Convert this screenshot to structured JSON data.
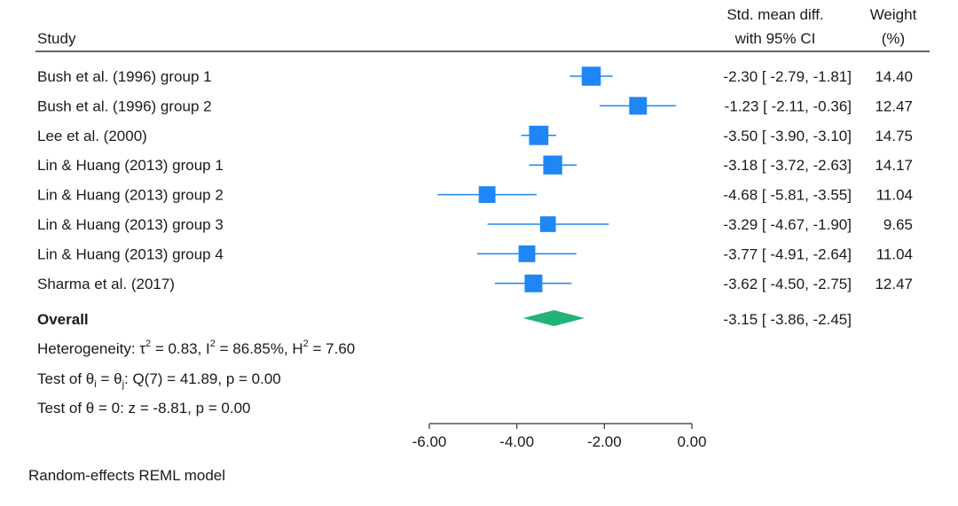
{
  "chart_data": {
    "type": "forest",
    "header": {
      "study": "Study",
      "effect_line1": "Std. mean diff.",
      "effect_line2": "with 95% CI",
      "weight_line1": "Weight",
      "weight_line2": "(%)"
    },
    "studies": [
      {
        "label": "Bush et al. (1996) group 1",
        "est": -2.3,
        "lo": -2.79,
        "hi": -1.81,
        "ci_text": "-2.30 [ -2.79,  -1.81]",
        "weight": 14.4,
        "weight_text": "14.40"
      },
      {
        "label": "Bush et al. (1996) group 2",
        "est": -1.23,
        "lo": -2.11,
        "hi": -0.36,
        "ci_text": "-1.23 [ -2.11,  -0.36]",
        "weight": 12.47,
        "weight_text": "12.47"
      },
      {
        "label": "Lee et al. (2000)",
        "est": -3.5,
        "lo": -3.9,
        "hi": -3.1,
        "ci_text": "-3.50 [ -3.90,  -3.10]",
        "weight": 14.75,
        "weight_text": "14.75"
      },
      {
        "label": "Lin & Huang (2013) group 1",
        "est": -3.18,
        "lo": -3.72,
        "hi": -2.63,
        "ci_text": "-3.18 [ -3.72,  -2.63]",
        "weight": 14.17,
        "weight_text": "14.17"
      },
      {
        "label": "Lin & Huang (2013) group 2",
        "est": -4.68,
        "lo": -5.81,
        "hi": -3.55,
        "ci_text": "-4.68 [ -5.81,  -3.55]",
        "weight": 11.04,
        "weight_text": "11.04"
      },
      {
        "label": "Lin & Huang (2013) group 3",
        "est": -3.29,
        "lo": -4.67,
        "hi": -1.9,
        "ci_text": "-3.29 [ -4.67,  -1.90]",
        "weight": 9.65,
        "weight_text": "9.65"
      },
      {
        "label": "Lin & Huang (2013) group 4",
        "est": -3.77,
        "lo": -4.91,
        "hi": -2.64,
        "ci_text": "-3.77 [ -4.91,  -2.64]",
        "weight": 11.04,
        "weight_text": "11.04"
      },
      {
        "label": "Sharma et al. (2017)",
        "est": -3.62,
        "lo": -4.5,
        "hi": -2.75,
        "ci_text": "-3.62 [ -4.50,  -2.75]",
        "weight": 12.47,
        "weight_text": "12.47"
      }
    ],
    "overall": {
      "label": "Overall",
      "est": -3.15,
      "lo": -3.86,
      "hi": -2.45,
      "ci_text": "-3.15 [ -3.86,  -2.45]"
    },
    "heterogeneity": {
      "prefix": "Heterogeneity: τ",
      "tau_sup": "2",
      "tau_val": " = 0.83, I",
      "i_sup": "2",
      "i_val": " = 86.85%, H",
      "h_sup": "2",
      "h_val": " = 7.60"
    },
    "test_equal": {
      "prefix": "Test of θ",
      "sub_i": "i",
      "mid": " = θ",
      "sub_j": "j",
      "rest": ": Q(7) = 41.89, p = 0.00"
    },
    "test_zero": "Test of θ = 0: z = -8.81, p = 0.00",
    "xaxis": {
      "min": -6.0,
      "max": 0.0,
      "ticks": [
        -6.0,
        -4.0,
        -2.0,
        0.0
      ],
      "tick_labels": [
        "-6.00",
        "-4.00",
        "-2.00",
        "0.00"
      ]
    },
    "footnote": "Random-effects REML model",
    "colors": {
      "marker": "#1e86f5",
      "ci_line": "#1e86f5",
      "overall": "#22b27a",
      "rule": "#333333",
      "text": "#1a1a1a"
    }
  }
}
